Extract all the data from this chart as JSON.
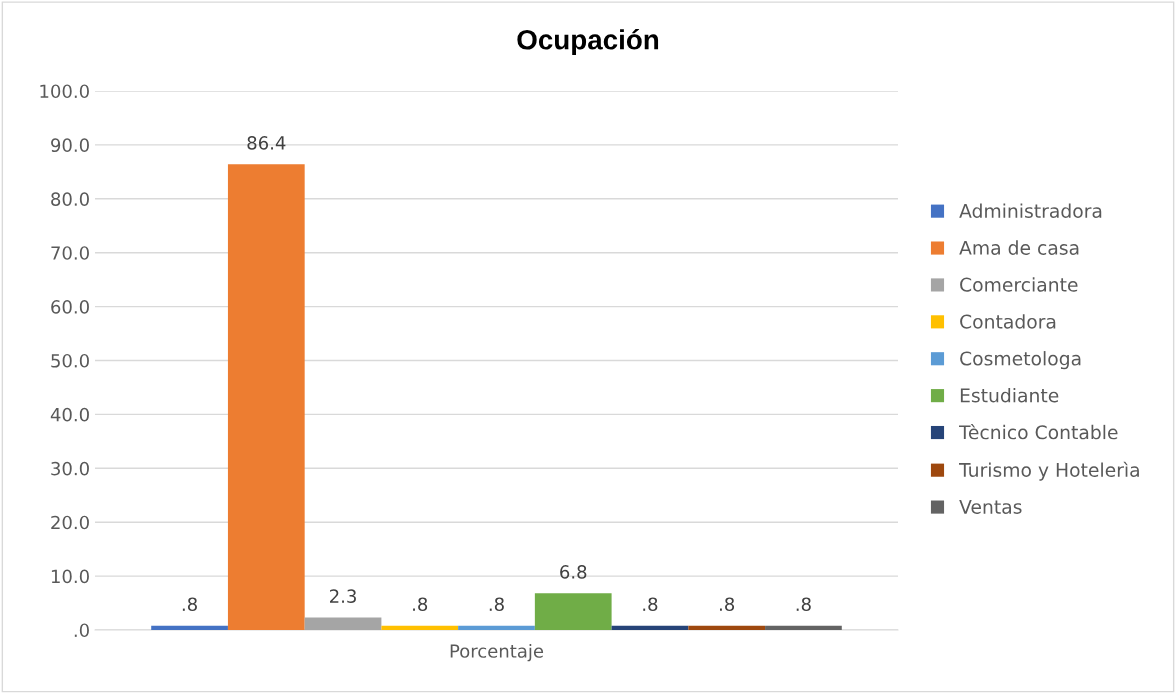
{
  "chart_data": {
    "type": "bar",
    "title": "Ocupación",
    "categories": [
      "Porcentaje"
    ],
    "series": [
      {
        "name": "Administradora",
        "color": "#4472c4",
        "values": [
          0.8
        ],
        "value_labels": [
          ".8"
        ]
      },
      {
        "name": "Ama de casa",
        "color": "#ed7d31",
        "values": [
          86.4
        ],
        "value_labels": [
          "86.4"
        ]
      },
      {
        "name": "Comerciante",
        "color": "#a5a5a5",
        "values": [
          2.3
        ],
        "value_labels": [
          "2.3"
        ]
      },
      {
        "name": "Contadora",
        "color": "#ffc000",
        "values": [
          0.8
        ],
        "value_labels": [
          ".8"
        ]
      },
      {
        "name": "Cosmetologa",
        "color": "#5b9bd5",
        "values": [
          0.8
        ],
        "value_labels": [
          ".8"
        ]
      },
      {
        "name": "Estudiante",
        "color": "#70ad47",
        "values": [
          6.8
        ],
        "value_labels": [
          "6.8"
        ]
      },
      {
        "name": "Tècnico Contable",
        "color": "#264478",
        "values": [
          0.8
        ],
        "value_labels": [
          ".8"
        ]
      },
      {
        "name": "Turismo y Hotelerìa",
        "color": "#9e480e",
        "values": [
          0.8
        ],
        "value_labels": [
          ".8"
        ]
      },
      {
        "name": "Ventas",
        "color": "#636363",
        "values": [
          0.8
        ],
        "value_labels": [
          ".8"
        ]
      }
    ],
    "ylim": [
      0,
      100
    ],
    "yticks": [
      {
        "value": 0,
        "label": ".0"
      },
      {
        "value": 10,
        "label": "10.0"
      },
      {
        "value": 20,
        "label": "20.0"
      },
      {
        "value": 30,
        "label": "30.0"
      },
      {
        "value": 40,
        "label": "40.0"
      },
      {
        "value": 50,
        "label": "50.0"
      },
      {
        "value": 60,
        "label": "60.0"
      },
      {
        "value": 70,
        "label": "70.0"
      },
      {
        "value": 80,
        "label": "80.0"
      },
      {
        "value": 90,
        "label": "90.0"
      },
      {
        "value": 100,
        "label": "100.0"
      }
    ],
    "grid": "y",
    "legend": "right"
  }
}
